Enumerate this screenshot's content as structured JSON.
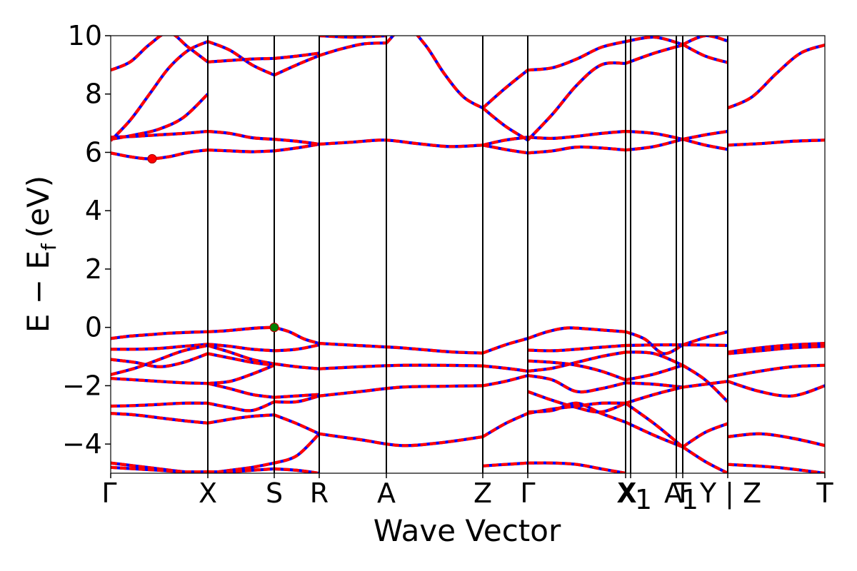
{
  "chart_data": {
    "type": "line",
    "title": "",
    "xlabel": "Wave Vector",
    "ylabel": "E − E_f (eV)",
    "ylabel_parts": {
      "main": "E − E",
      "sub": "f",
      "unit": "(eV)"
    },
    "ylim": [
      -5,
      10
    ],
    "yticks": [
      -4,
      -2,
      0,
      2,
      4,
      6,
      8,
      10
    ],
    "ytick_labels": [
      "−4",
      "−2",
      "0",
      "2",
      "4",
      "6",
      "8",
      "10"
    ],
    "x_range": [
      0,
      1
    ],
    "kpoints": [
      {
        "label": "Γ",
        "x": 0.0
      },
      {
        "label": "X",
        "x": 0.136
      },
      {
        "label": "S",
        "x": 0.229
      },
      {
        "label": "R",
        "x": 0.292
      },
      {
        "label": "A",
        "x": 0.386
      },
      {
        "label": "Z",
        "x": 0.521
      },
      {
        "label": "Γ",
        "x": 0.584
      },
      {
        "label": "X",
        "x": 0.721
      },
      {
        "label": "X₁",
        "x": 0.728
      },
      {
        "label": "A",
        "x": 0.792
      },
      {
        "label": "T",
        "x": 0.801
      },
      {
        "label": "Y | Z",
        "x": 0.864
      },
      {
        "label": "T",
        "x": 1.0
      }
    ],
    "tick_text": [
      "Γ",
      "X",
      "S",
      "R",
      "A",
      "Z",
      "Γ",
      "X",
      "X",
      "1",
      "A",
      "T",
      "1",
      "Y | Z",
      "T"
    ],
    "series_colors": {
      "band_a": "#0000ff",
      "band_b": "#ff0000"
    },
    "markers": [
      {
        "x": 0.058,
        "y": 5.78,
        "color": "#ff0000"
      },
      {
        "x": 0.229,
        "y": 0.0,
        "color": "#008000"
      }
    ],
    "bands": [
      {
        "seg": [
          0.0,
          0.136
        ],
        "y": [
          -0.38,
          -0.3,
          -0.25,
          -0.2,
          -0.17,
          -0.15
        ]
      },
      {
        "seg": [
          0.136,
          0.229
        ],
        "y": [
          -0.15,
          -0.12,
          -0.07,
          -0.02,
          0.0
        ]
      },
      {
        "seg": [
          0.229,
          0.292
        ],
        "y": [
          0.0,
          -0.15,
          -0.4,
          -0.55
        ]
      },
      {
        "seg": [
          0.292,
          0.521
        ],
        "y": [
          -0.55,
          -0.6,
          -0.65,
          -0.7,
          -0.78,
          -0.85,
          -0.88
        ]
      },
      {
        "seg": [
          0.521,
          0.584
        ],
        "y": [
          -0.88,
          -0.6,
          -0.38
        ]
      },
      {
        "seg": [
          0.584,
          0.721
        ],
        "y": [
          -0.38,
          -0.15,
          -0.02,
          -0.05,
          -0.1,
          -0.15
        ]
      },
      {
        "seg": [
          0.721,
          0.801
        ],
        "y": [
          -0.15,
          -0.4,
          -0.9,
          -0.6
        ]
      },
      {
        "seg": [
          0.801,
          0.864
        ],
        "y": [
          -0.6,
          -0.35,
          -0.15
        ]
      },
      {
        "seg": [
          0.864,
          1.0
        ],
        "y": [
          -0.85,
          -0.7,
          -0.6,
          -0.55
        ]
      },
      {
        "seg": [
          0.0,
          0.136
        ],
        "y": [
          -0.75,
          -0.75,
          -0.72,
          -0.65,
          -0.58
        ]
      },
      {
        "seg": [
          0.136,
          0.229
        ],
        "y": [
          -0.58,
          -0.65,
          -0.75,
          -0.8
        ]
      },
      {
        "seg": [
          0.229,
          0.292
        ],
        "y": [
          -0.8,
          -0.75,
          -0.6
        ]
      },
      {
        "seg": [
          0.584,
          0.721
        ],
        "y": [
          -0.78,
          -0.8,
          -0.75,
          -0.68,
          -0.62
        ]
      },
      {
        "seg": [
          0.721,
          0.864
        ],
        "y": [
          -0.62,
          -0.6,
          -0.6,
          -0.62
        ]
      },
      {
        "seg": [
          0.864,
          1.0
        ],
        "y": [
          -0.9,
          -0.8,
          -0.7,
          -0.65
        ]
      },
      {
        "seg": [
          0.0,
          0.136
        ],
        "y": [
          -1.62,
          -1.4,
          -1.1,
          -0.8,
          -0.62
        ]
      },
      {
        "seg": [
          0.136,
          0.229
        ],
        "y": [
          -0.62,
          -0.85,
          -1.1,
          -1.25
        ]
      },
      {
        "seg": [
          0.229,
          0.292
        ],
        "y": [
          -1.25,
          -1.35,
          -1.42
        ]
      },
      {
        "seg": [
          0.292,
          0.521
        ],
        "y": [
          -1.42,
          -1.35,
          -1.3,
          -1.3,
          -1.32
        ]
      },
      {
        "seg": [
          0.521,
          0.584
        ],
        "y": [
          -1.32,
          -1.4,
          -1.5
        ]
      },
      {
        "seg": [
          0.584,
          0.721
        ],
        "y": [
          -1.5,
          -1.4,
          -1.2,
          -1.0,
          -0.85
        ]
      },
      {
        "seg": [
          0.721,
          0.801
        ],
        "y": [
          -0.85,
          -0.9,
          -1.3
        ]
      },
      {
        "seg": [
          0.0,
          0.136
        ],
        "y": [
          -1.1,
          -1.2,
          -1.35,
          -1.2,
          -0.9
        ]
      },
      {
        "seg": [
          0.136,
          0.229
        ],
        "y": [
          -0.9,
          -1.05,
          -1.2,
          -1.3
        ]
      },
      {
        "seg": [
          0.584,
          0.721
        ],
        "y": [
          -1.15,
          -1.2,
          -1.3,
          -1.5,
          -1.8
        ]
      },
      {
        "seg": [
          0.721,
          0.801
        ],
        "y": [
          -1.8,
          -1.6,
          -1.3
        ]
      },
      {
        "seg": [
          0.801,
          0.864
        ],
        "y": [
          -1.3,
          -1.8,
          -2.55
        ]
      },
      {
        "seg": [
          0.864,
          1.0
        ],
        "y": [
          -1.7,
          -1.5,
          -1.35,
          -1.3
        ]
      },
      {
        "seg": [
          0.0,
          0.136
        ],
        "y": [
          -1.75,
          -1.8,
          -1.85,
          -1.9,
          -1.92
        ]
      },
      {
        "seg": [
          0.136,
          0.229
        ],
        "y": [
          -1.92,
          -1.85,
          -1.6,
          -1.3
        ]
      },
      {
        "seg": [
          0.292,
          0.521
        ],
        "y": [
          -2.35,
          -2.2,
          -2.05,
          -2.02,
          -2.0
        ]
      },
      {
        "seg": [
          0.521,
          0.584
        ],
        "y": [
          -2.0,
          -1.85,
          -1.65
        ]
      },
      {
        "seg": [
          0.584,
          0.721
        ],
        "y": [
          -1.65,
          -1.8,
          -2.2,
          -2.1,
          -1.9
        ]
      },
      {
        "seg": [
          0.721,
          0.801
        ],
        "y": [
          -1.9,
          -1.95,
          -2.05
        ]
      },
      {
        "seg": [
          0.801,
          0.864
        ],
        "y": [
          -2.05,
          -1.95,
          -1.85
        ]
      },
      {
        "seg": [
          0.864,
          1.0
        ],
        "y": [
          -1.85,
          -2.2,
          -2.35,
          -2.0
        ]
      },
      {
        "seg": [
          0.136,
          0.229
        ],
        "y": [
          -1.92,
          -2.1,
          -2.3,
          -2.4
        ]
      },
      {
        "seg": [
          0.229,
          0.292
        ],
        "y": [
          -2.4,
          -2.35,
          -2.3
        ]
      },
      {
        "seg": [
          0.584,
          0.721
        ],
        "y": [
          -2.2,
          -2.5,
          -2.75,
          -2.9,
          -2.6
        ]
      },
      {
        "seg": [
          0.721,
          0.801
        ],
        "y": [
          -2.6,
          -2.3,
          -2.05
        ]
      },
      {
        "seg": [
          0.0,
          0.136
        ],
        "y": [
          -2.7,
          -2.68,
          -2.64,
          -2.6,
          -2.6
        ]
      },
      {
        "seg": [
          0.136,
          0.229
        ],
        "y": [
          -2.6,
          -2.75,
          -2.85,
          -2.55
        ]
      },
      {
        "seg": [
          0.229,
          0.292
        ],
        "y": [
          -2.55,
          -2.55,
          -2.35
        ]
      },
      {
        "seg": [
          0.584,
          0.721
        ],
        "y": [
          -2.9,
          -2.85,
          -2.6,
          -2.95,
          -3.25
        ]
      },
      {
        "seg": [
          0.721,
          0.801
        ],
        "y": [
          -3.25,
          -3.7,
          -4.1
        ]
      },
      {
        "seg": [
          0.801,
          0.864
        ],
        "y": [
          -4.1,
          -3.6,
          -3.3
        ]
      },
      {
        "seg": [
          0.0,
          0.136
        ],
        "y": [
          -2.95,
          -3.0,
          -3.1,
          -3.2,
          -3.28
        ]
      },
      {
        "seg": [
          0.136,
          0.229
        ],
        "y": [
          -3.28,
          -3.15,
          -3.05,
          -3.0
        ]
      },
      {
        "seg": [
          0.229,
          0.292
        ],
        "y": [
          -3.0,
          -3.3,
          -3.65
        ]
      },
      {
        "seg": [
          0.292,
          0.521
        ],
        "y": [
          -3.65,
          -3.85,
          -4.05,
          -3.95,
          -3.75
        ]
      },
      {
        "seg": [
          0.521,
          0.584
        ],
        "y": [
          -3.75,
          -3.3,
          -2.95
        ]
      },
      {
        "seg": [
          0.584,
          0.721
        ],
        "y": [
          -2.95,
          -2.8,
          -2.7,
          -2.6,
          -2.6
        ]
      },
      {
        "seg": [
          0.721,
          0.801
        ],
        "y": [
          -2.6,
          -3.3,
          -4.1
        ]
      },
      {
        "seg": [
          0.801,
          0.864
        ],
        "y": [
          -4.1,
          -4.6,
          -5.0
        ]
      },
      {
        "seg": [
          0.864,
          1.0
        ],
        "y": [
          -3.75,
          -3.65,
          -3.8,
          -4.05
        ]
      },
      {
        "seg": [
          0.0,
          0.136
        ],
        "y": [
          -4.65,
          -4.75,
          -4.85,
          -4.95,
          -5.0
        ]
      },
      {
        "seg": [
          0.136,
          0.229
        ],
        "y": [
          -5.0,
          -4.9,
          -4.8,
          -4.65
        ]
      },
      {
        "seg": [
          0.229,
          0.292
        ],
        "y": [
          -4.65,
          -4.4,
          -3.65
        ]
      },
      {
        "seg": [
          0.521,
          0.584
        ],
        "y": [
          -4.75,
          -4.7,
          -4.65
        ]
      },
      {
        "seg": [
          0.584,
          0.721
        ],
        "y": [
          -4.65,
          -4.65,
          -4.7,
          -4.85,
          -5.0
        ]
      },
      {
        "seg": [
          0.864,
          1.0
        ],
        "y": [
          -4.7,
          -4.8,
          -5.0
        ]
      },
      {
        "seg": [
          0.0,
          0.136
        ],
        "y": [
          -4.8,
          -4.85,
          -4.9,
          -4.95,
          -4.95
        ]
      },
      {
        "seg": [
          0.136,
          0.229
        ],
        "y": [
          -4.95,
          -4.95,
          -4.9,
          -4.85
        ]
      },
      {
        "seg": [
          0.229,
          0.292
        ],
        "y": [
          -4.85,
          -4.9,
          -5.0
        ]
      },
      {
        "seg": [
          0.0,
          0.136
        ],
        "y": [
          5.98,
          5.85,
          5.78,
          5.85,
          6.0,
          6.08
        ]
      },
      {
        "seg": [
          0.136,
          0.229
        ],
        "y": [
          6.08,
          6.05,
          6.02,
          6.05
        ]
      },
      {
        "seg": [
          0.229,
          0.292
        ],
        "y": [
          6.05,
          6.15,
          6.28
        ]
      },
      {
        "seg": [
          0.292,
          0.521
        ],
        "y": [
          6.28,
          6.35,
          6.42,
          6.3,
          6.2,
          6.25
        ]
      },
      {
        "seg": [
          0.521,
          0.584
        ],
        "y": [
          6.25,
          6.1,
          5.98
        ]
      },
      {
        "seg": [
          0.584,
          0.721
        ],
        "y": [
          5.98,
          6.05,
          6.18,
          6.15,
          6.08
        ]
      },
      {
        "seg": [
          0.721,
          0.801
        ],
        "y": [
          6.08,
          6.2,
          6.45
        ]
      },
      {
        "seg": [
          0.801,
          0.864
        ],
        "y": [
          6.45,
          6.25,
          6.1
        ]
      },
      {
        "seg": [
          0.864,
          1.0
        ],
        "y": [
          6.25,
          6.3,
          6.38,
          6.42
        ]
      },
      {
        "seg": [
          0.0,
          0.136
        ],
        "y": [
          6.52,
          6.55,
          6.6,
          6.65,
          6.72
        ]
      },
      {
        "seg": [
          0.136,
          0.229
        ],
        "y": [
          6.72,
          6.65,
          6.5,
          6.45
        ]
      },
      {
        "seg": [
          0.229,
          0.292
        ],
        "y": [
          6.45,
          6.38,
          6.28
        ]
      },
      {
        "seg": [
          0.521,
          0.584
        ],
        "y": [
          6.25,
          6.42,
          6.52
        ]
      },
      {
        "seg": [
          0.584,
          0.721
        ],
        "y": [
          6.52,
          6.48,
          6.55,
          6.65,
          6.72
        ]
      },
      {
        "seg": [
          0.721,
          0.801
        ],
        "y": [
          6.72,
          6.65,
          6.45
        ]
      },
      {
        "seg": [
          0.801,
          0.864
        ],
        "y": [
          6.45,
          6.6,
          6.72
        ]
      },
      {
        "seg": [
          0.0,
          0.136
        ],
        "y": [
          6.4,
          7.1,
          8.0,
          8.9,
          9.5,
          9.8
        ]
      },
      {
        "seg": [
          0.136,
          0.229
        ],
        "y": [
          9.8,
          9.5,
          9.0,
          8.65
        ]
      },
      {
        "seg": [
          0.229,
          0.292
        ],
        "y": [
          8.65,
          9.0,
          9.32
        ]
      },
      {
        "seg": [
          0.292,
          0.386
        ],
        "y": [
          9.32,
          9.55,
          9.72,
          9.75
        ]
      },
      {
        "seg": [
          0.386,
          0.521
        ],
        "y": [
          9.75,
          10.3,
          9.7,
          8.7,
          7.9,
          7.52
        ]
      },
      {
        "seg": [
          0.521,
          0.584
        ],
        "y": [
          7.52,
          6.9,
          6.42
        ]
      },
      {
        "seg": [
          0.584,
          0.721
        ],
        "y": [
          6.42,
          7.3,
          8.3,
          9.0,
          9.05
        ]
      },
      {
        "seg": [
          0.721,
          0.801
        ],
        "y": [
          9.05,
          9.4,
          9.68
        ]
      },
      {
        "seg": [
          0.0,
          0.136
        ],
        "y": [
          8.82,
          9.1,
          9.7,
          10.1,
          9.6,
          9.1
        ]
      },
      {
        "seg": [
          0.136,
          0.229
        ],
        "y": [
          9.1,
          9.15,
          9.2,
          9.22
        ]
      },
      {
        "seg": [
          0.229,
          0.292
        ],
        "y": [
          9.22,
          9.3,
          9.4
        ]
      },
      {
        "seg": [
          0.521,
          0.584
        ],
        "y": [
          7.52,
          8.2,
          8.82
        ]
      },
      {
        "seg": [
          0.584,
          0.721
        ],
        "y": [
          8.82,
          8.9,
          9.2,
          9.6,
          9.8
        ]
      },
      {
        "seg": [
          0.721,
          0.801
        ],
        "y": [
          9.8,
          9.95,
          9.7
        ]
      },
      {
        "seg": [
          0.801,
          0.864
        ],
        "y": [
          9.7,
          10.0,
          9.82
        ]
      },
      {
        "seg": [
          0.864,
          1.0
        ],
        "y": [
          7.52,
          7.9,
          8.7,
          9.4,
          9.68
        ]
      },
      {
        "seg": [
          0.0,
          0.136
        ],
        "y": [
          6.45,
          6.6,
          6.8,
          7.2,
          8.0
        ]
      },
      {
        "seg": [
          0.801,
          0.864
        ],
        "y": [
          9.7,
          9.3,
          9.08
        ]
      },
      {
        "seg": [
          0.292,
          0.386
        ],
        "y": [
          10.0,
          9.95,
          10.0
        ]
      }
    ]
  }
}
